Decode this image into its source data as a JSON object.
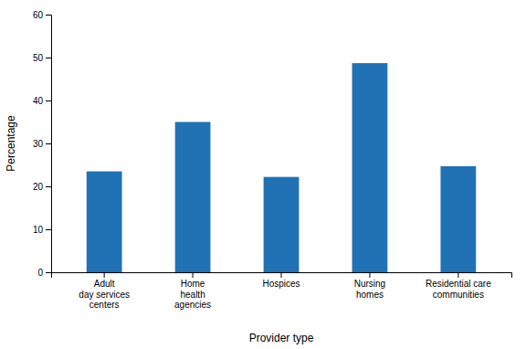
{
  "chart_data": {
    "type": "bar",
    "categories": [
      "Adult\nday services\ncenters",
      "Home\nhealth\nagencies",
      "Hospices",
      "Nursing\nhomes",
      "Residential care\ncommunities"
    ],
    "values": [
      23.5,
      35.0,
      22.2,
      48.7,
      24.7
    ],
    "color": "#2171b5",
    "xlabel": "Provider type",
    "ylabel": "Percentage",
    "ylim": [
      0,
      60
    ],
    "yticks": [
      0,
      10,
      20,
      30,
      40,
      50,
      60
    ],
    "grid": false
  }
}
